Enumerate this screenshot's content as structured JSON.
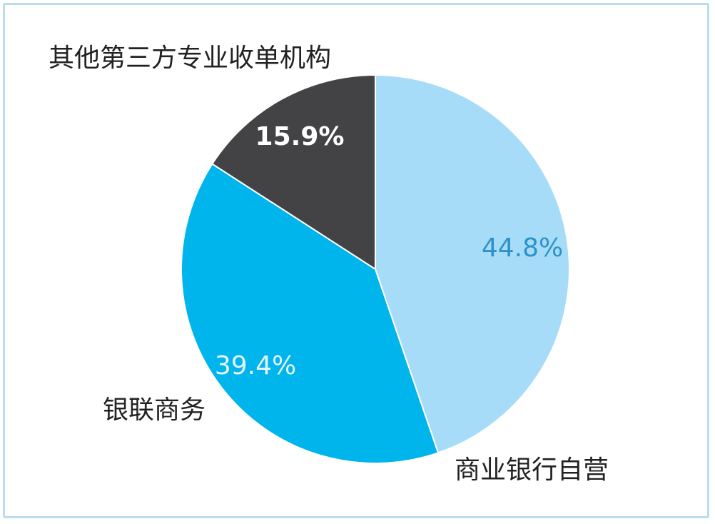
{
  "chart_data": {
    "type": "pie",
    "title": "",
    "categories": [
      "商业银行自营",
      "银联商务",
      "其他第三方专业收单机构"
    ],
    "values": [
      44.8,
      39.4,
      15.9
    ],
    "value_labels": [
      "44.8%",
      "39.4%",
      "15.9%"
    ],
    "colors": [
      "#a7dcf8",
      "#00b4ec",
      "#434346"
    ],
    "label_colors": [
      "#2b93c9",
      "#e8f7ff",
      "#ffffff"
    ],
    "start_angle": "12 o'clock, clockwise"
  }
}
